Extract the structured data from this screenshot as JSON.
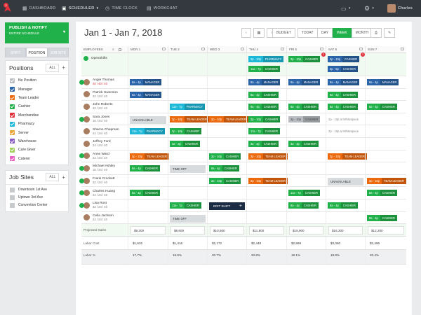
{
  "topbar": {
    "badge": "3",
    "nav": [
      {
        "label": "DASHBOARD",
        "icon": "dashboard-icon"
      },
      {
        "label": "SCHEDULER",
        "icon": "calendar-icon"
      },
      {
        "label": "TIME CLOCK",
        "icon": "clock-icon"
      },
      {
        "label": "WORKCHAT",
        "icon": "chat-icon"
      }
    ],
    "user": "Charles"
  },
  "sidebar": {
    "publish": {
      "label": "PUBLISH & NOTIFY",
      "sub": "ENTIRE SCHEDULE"
    },
    "views": [
      "SHIFT",
      "POSITION",
      "JOB SITE"
    ],
    "positions_title": "Positions",
    "all_label": "ALL",
    "positions": [
      {
        "label": "No Position",
        "color": "#b9bdc1"
      },
      {
        "label": "Manager",
        "color": "#2b64a8"
      },
      {
        "label": "Team Leader",
        "color": "#ec6a0d"
      },
      {
        "label": "Cashier",
        "color": "#21b14a"
      },
      {
        "label": "Merchandise",
        "color": "#e0303a"
      },
      {
        "label": "Pharmacy",
        "color": "#1eb9d9"
      },
      {
        "label": "Server",
        "color": "#e8a33a"
      },
      {
        "label": "Warehouse",
        "color": "#8a5bc5"
      },
      {
        "label": "Care Giver",
        "color": "#9ed05a"
      },
      {
        "label": "Caterer",
        "color": "#e85fc3"
      }
    ],
    "sites_title": "Job Sites",
    "sites": [
      "Downtown 1st Ave",
      "Uptown 3rd Ave",
      "Convention Center"
    ]
  },
  "main": {
    "date_range": "Jan 1 - Jan 7, 2018",
    "toolbar": [
      "BUDGET",
      "TODAY",
      "DAY",
      "WEEK",
      "MONTH"
    ],
    "employees_header": "EMPLOYEES",
    "days": [
      "MON 1",
      "TUE 2",
      "WED 3",
      "THU 4",
      "FRI 5",
      "SAT 6",
      "SUN 7"
    ],
    "openshifts_label": "OpenShifts",
    "openshifts": [
      {
        "day": 3,
        "slot": 0,
        "time": "2p - 10p",
        "role": "PHARMACY",
        "color": "cyan"
      },
      {
        "day": 4,
        "slot": 0,
        "time": "2p - 10p",
        "role": "CASHIER",
        "color": "green"
      },
      {
        "day": 5,
        "slot": 0,
        "time": "2p - 10p",
        "role": "CASHIER",
        "color": "blue"
      },
      {
        "day": 3,
        "slot": 1,
        "time": "11a - 7p",
        "role": "CASHIER",
        "color": "green"
      },
      {
        "day": 5,
        "slot": 1,
        "time": "3p - 5p",
        "role": "CASHIER",
        "color": "blue"
      }
    ],
    "employees": [
      {
        "name": "Angie Thomas",
        "hours": "40 / 40 / 40",
        "hours_alert": true,
        "shifts": [
          {
            "day": 0,
            "time": "8a - 4p",
            "role": "MANAGER",
            "color": "blue"
          },
          {
            "day": 3,
            "time": "8a - 4p",
            "role": "MANAGER",
            "color": "blue"
          },
          {
            "day": 4,
            "time": "8a - 4p",
            "role": "MANAGER",
            "color": "blue"
          },
          {
            "day": 5,
            "time": "8a - 4p",
            "role": "MANAGER",
            "color": "blue"
          },
          {
            "day": 6,
            "time": "8a - 4p",
            "role": "MANAGER",
            "color": "blue"
          }
        ]
      },
      {
        "name": "Patrick Swenson",
        "hours": "32 / 24 / 40",
        "shifts": [
          {
            "day": 0,
            "time": "8a - 4p",
            "role": "MANAGER",
            "color": "blue"
          },
          {
            "day": 3,
            "time": "8a - 4p",
            "role": "CASHIER",
            "color": "green"
          },
          {
            "day": 5,
            "time": "8a - 4p",
            "role": "CASHIER",
            "color": "green"
          }
        ]
      },
      {
        "name": "John Roberts",
        "hours": "32 / 24 / 40",
        "shifts": [
          {
            "day": 1,
            "time": "11a - 7p",
            "role": "PHARMACY",
            "color": "cyan"
          },
          {
            "day": 3,
            "time": "8a - 4p",
            "role": "CASHIER",
            "color": "green"
          },
          {
            "day": 4,
            "time": "8a - 4p",
            "role": "CASHIER",
            "color": "green"
          },
          {
            "day": 5,
            "time": "8a - 4p",
            "role": "CASHIER",
            "color": "green"
          },
          {
            "day": 6,
            "time": "8a - 4p",
            "role": "CASHIER",
            "color": "green"
          }
        ]
      },
      {
        "name": "Sara Jones",
        "hours": "16 / 24 / 40",
        "shifts": [
          {
            "day": 0,
            "type": "unavailable",
            "label": "UNAVAILABLE"
          },
          {
            "day": 1,
            "time": "2p - 10p",
            "role": "TEAM LEADER",
            "color": "orange"
          },
          {
            "day": 2,
            "time": "2p - 10p",
            "role": "TEAM LEADER",
            "color": "orange"
          },
          {
            "day": 3,
            "time": "2p - 10p",
            "role": "CASHIER",
            "color": "green"
          },
          {
            "day": 4,
            "time": "2p - 10p",
            "role": "CASHIER",
            "color": "gray"
          },
          {
            "day": 5,
            "type": "ghost",
            "label": "2p - 10p at Whitespace"
          }
        ]
      },
      {
        "name": "Sharon Chapman",
        "hours": "24 / 24 / 40",
        "shifts": [
          {
            "day": 0,
            "time": "11a - 7p",
            "role": "PHARMACY",
            "color": "cyan"
          },
          {
            "day": 1,
            "time": "2p - 10p",
            "role": "CASHIER",
            "color": "green"
          },
          {
            "day": 3,
            "time": "11a - 7p",
            "role": "CASHIER",
            "color": "green"
          },
          {
            "day": 5,
            "type": "ghost",
            "label": "2p - 10p at Whitespace"
          }
        ]
      },
      {
        "name": "Jeffrey Ford",
        "hours": "24 / 24 / 40",
        "shifts": [
          {
            "day": 1,
            "time": "3a - 3p",
            "role": "CASHIER",
            "color": "green"
          },
          {
            "day": 3,
            "time": "3a - 3p",
            "role": "CASHIER",
            "color": "green"
          },
          {
            "day": 4,
            "time": "3a - 3p",
            "role": "CASHIER",
            "color": "green"
          }
        ]
      },
      {
        "name": "Anne Ward",
        "hours": "24 / 24 / 40",
        "shifts": [
          {
            "day": 0,
            "time": "2p - 10p",
            "role": "TEAM LEADER",
            "color": "orange"
          },
          {
            "day": 2,
            "time": "2p - 10p",
            "role": "CASHIER",
            "color": "green"
          },
          {
            "day": 3,
            "time": "2p - 10p",
            "role": "TEAM LEADER",
            "color": "orange"
          },
          {
            "day": 5,
            "time": "2p - 10p",
            "role": "TEAM LEADER",
            "color": "orange"
          }
        ]
      },
      {
        "name": "Michael Ashley",
        "hours": "16 / 24 / 40",
        "shifts": [
          {
            "day": 0,
            "time": "8a - 4p",
            "role": "CASHIER",
            "color": "green"
          },
          {
            "day": 1,
            "type": "timeoff",
            "label": "TIME OFF"
          },
          {
            "day": 2,
            "time": "8a - 4p",
            "role": "CASHIER",
            "color": "green"
          }
        ]
      },
      {
        "name": "Frank Crockett",
        "hours": "32 / 24 / 40",
        "shifts": [
          {
            "day": 2,
            "time": "2p - 10p",
            "role": "CASHIER",
            "color": "green"
          },
          {
            "day": 3,
            "time": "2p - 10p",
            "role": "TEAM LEADER",
            "color": "orange"
          },
          {
            "day": 5,
            "type": "unavailable",
            "label": "UNAVAILABLE"
          },
          {
            "day": 6,
            "time": "2p - 10p",
            "role": "TEAM LEADER",
            "color": "orange"
          }
        ]
      },
      {
        "name": "Charles Huang",
        "hours": "24 / 24 / 40",
        "shifts": [
          {
            "day": 0,
            "time": "8a - 4p",
            "role": "CASHIER",
            "color": "green"
          },
          {
            "day": 4,
            "time": "11a - 7p",
            "role": "CASHIER",
            "color": "green"
          },
          {
            "day": 6,
            "time": "8a - 4p",
            "role": "CASHIER",
            "color": "green"
          }
        ]
      },
      {
        "name": "Lisa Rost",
        "hours": "32 / 24 / 40",
        "shifts": [
          {
            "day": 1,
            "time": "11a - 7p",
            "role": "CASHIER",
            "color": "green"
          },
          {
            "day": 2,
            "type": "edit",
            "label": "EDIT SHIFT"
          },
          {
            "day": 4,
            "time": "8a - 4p",
            "role": "CASHIER",
            "color": "green"
          },
          {
            "day": 5,
            "time": "8a - 4p",
            "role": "CASHIER",
            "color": "green"
          }
        ]
      },
      {
        "name": "Celia Jackson",
        "hours": "24 / 24 / 40",
        "shifts": [
          {
            "day": 1,
            "type": "timeoff",
            "label": "TIME OFF"
          },
          {
            "day": 6,
            "time": "8a - 4p",
            "role": "CASHIER",
            "color": "green"
          }
        ]
      }
    ],
    "summary": [
      {
        "label": "Projected Sales",
        "values": [
          "$9,200",
          "$8,600",
          "$10,500",
          "$11,800",
          "$15,900",
          "$16,300",
          "$12,200"
        ]
      },
      {
        "label": "Labor Cost",
        "values": [
          "$1,632",
          "$1,416",
          "$2,172",
          "$2,448",
          "$2,868",
          "$3,060",
          "$2,496"
        ]
      },
      {
        "label": "Labor %",
        "values": [
          "17.7%",
          "16.5%",
          "20.7%",
          "20.8%",
          "18.1%",
          "18.8%",
          "20.4%"
        ]
      }
    ]
  }
}
